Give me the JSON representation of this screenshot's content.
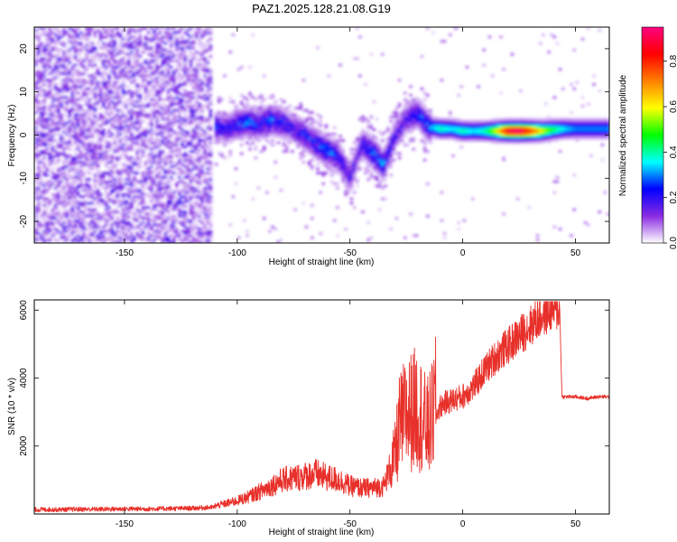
{
  "figure": {
    "title": "PAZ1.2025.128.21.08.G19"
  },
  "chart_data": [
    {
      "type": "heatmap",
      "title": "PAZ1.2025.128.21.08.G19",
      "xlabel": "Height of straight line (km)",
      "ylabel": "Frequency (Hz)",
      "xlim": [
        -190,
        65
      ],
      "ylim": [
        -25,
        25
      ],
      "x_ticks": [
        -150,
        -100,
        -50,
        0,
        50
      ],
      "y_ticks": [
        -20,
        -10,
        0,
        10,
        20
      ],
      "colorbar": {
        "label": "Normalized spectral amplitude",
        "range": [
          0,
          0.95
        ],
        "ticks": [
          0.0,
          0.2,
          0.4,
          0.6,
          0.8
        ],
        "tick_labels": [
          "0.0",
          "0.2",
          "0.4",
          "0.6",
          "0.8"
        ],
        "colormap": [
          "#ffffff",
          "#8a2be2",
          "#0000ff",
          "#00ffff",
          "#00ff00",
          "#ffff00",
          "#ff8000",
          "#ff0000",
          "#ff0080"
        ]
      },
      "ridge": [
        {
          "x": -110,
          "y": 2,
          "a": 0.25
        },
        {
          "x": -105,
          "y": 1.5,
          "a": 0.2
        },
        {
          "x": -100,
          "y": 2.5,
          "a": 0.25
        },
        {
          "x": -95,
          "y": 3,
          "a": 0.3
        },
        {
          "x": -90,
          "y": 2.5,
          "a": 0.25
        },
        {
          "x": -85,
          "y": 3.5,
          "a": 0.3
        },
        {
          "x": -80,
          "y": 3,
          "a": 0.25
        },
        {
          "x": -75,
          "y": 1.5,
          "a": 0.2
        },
        {
          "x": -70,
          "y": 0,
          "a": 0.25
        },
        {
          "x": -65,
          "y": -2,
          "a": 0.25
        },
        {
          "x": -60,
          "y": -3.5,
          "a": 0.3
        },
        {
          "x": -55,
          "y": -5,
          "a": 0.25
        },
        {
          "x": -50,
          "y": -10,
          "a": 0.2
        },
        {
          "x": -45,
          "y": -2,
          "a": 0.2
        },
        {
          "x": -40,
          "y": -4,
          "a": 0.3
        },
        {
          "x": -35,
          "y": -7,
          "a": 0.3
        },
        {
          "x": -30,
          "y": 0,
          "a": 0.2
        },
        {
          "x": -25,
          "y": 4,
          "a": 0.2
        },
        {
          "x": -20,
          "y": 5,
          "a": 0.25
        },
        {
          "x": -15,
          "y": 2,
          "a": 0.3
        },
        {
          "x": -10,
          "y": 1.5,
          "a": 0.4
        },
        {
          "x": -5,
          "y": 1.5,
          "a": 0.35
        },
        {
          "x": 0,
          "y": 1,
          "a": 0.4
        },
        {
          "x": 5,
          "y": 1,
          "a": 0.35
        },
        {
          "x": 10,
          "y": 1,
          "a": 0.4
        },
        {
          "x": 15,
          "y": 1,
          "a": 0.6
        },
        {
          "x": 20,
          "y": 1,
          "a": 0.9
        },
        {
          "x": 25,
          "y": 1,
          "a": 0.95
        },
        {
          "x": 30,
          "y": 1,
          "a": 0.8
        },
        {
          "x": 35,
          "y": 1,
          "a": 0.6
        },
        {
          "x": 40,
          "y": 1.3,
          "a": 0.45
        },
        {
          "x": 45,
          "y": 1.5,
          "a": 0.35
        },
        {
          "x": 50,
          "y": 1.5,
          "a": 0.3
        },
        {
          "x": 55,
          "y": 1.5,
          "a": 0.3
        },
        {
          "x": 60,
          "y": 1.5,
          "a": 0.3
        },
        {
          "x": 65,
          "y": 1.5,
          "a": 0.3
        }
      ]
    },
    {
      "type": "line",
      "xlabel": "Height of straight line (km)",
      "ylabel": "SNR (10 * v/v)",
      "xlim": [
        -190,
        65
      ],
      "ylim": [
        0,
        6300
      ],
      "x_ticks": [
        -150,
        -100,
        -50,
        0,
        50
      ],
      "y_ticks": [
        2000,
        4000,
        6000
      ],
      "series": [
        {
          "color": "#e8302a",
          "x": [
            -190,
            -180,
            -170,
            -160,
            -150,
            -140,
            -130,
            -120,
            -110,
            -105,
            -100,
            -95,
            -90,
            -85,
            -80,
            -75,
            -70,
            -65,
            -60,
            -55,
            -50,
            -45,
            -40,
            -35,
            -30,
            -28,
            -26,
            -24,
            -22,
            -20,
            -18,
            -16,
            -14,
            -12,
            -10,
            -8,
            -6,
            -4,
            -2,
            0,
            5,
            10,
            15,
            20,
            25,
            30,
            35,
            40,
            43,
            44,
            50,
            55,
            60,
            65
          ],
          "y": [
            130,
            130,
            140,
            140,
            150,
            150,
            160,
            170,
            200,
            260,
            330,
            430,
            560,
            700,
            850,
            900,
            950,
            1000,
            900,
            850,
            700,
            650,
            650,
            700,
            1500,
            2300,
            2500,
            2600,
            2700,
            2750,
            2500,
            2200,
            2400,
            2900,
            3200,
            3300,
            3350,
            3400,
            3450,
            3500,
            3800,
            4300,
            4700,
            5000,
            5300,
            5600,
            5900,
            6100,
            6100,
            3450,
            3450,
            3400,
            3450,
            3450
          ]
        }
      ]
    }
  ]
}
